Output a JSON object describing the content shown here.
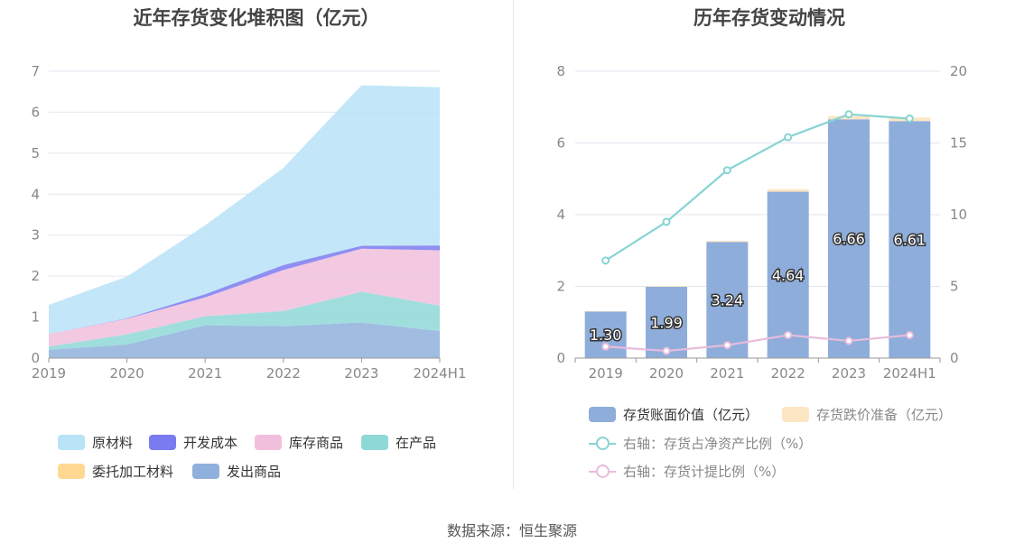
{
  "source": "数据来源：恒生聚源",
  "chart_data": [
    {
      "type": "area",
      "stacked": true,
      "title": "近年存货变化堆积图（亿元）",
      "categories": [
        "2019",
        "2020",
        "2021",
        "2022",
        "2023",
        "2024H1"
      ],
      "ylim": [
        0,
        7
      ],
      "yticks": [
        0,
        1,
        2,
        3,
        4,
        5,
        6,
        7
      ],
      "grid": true,
      "legend_position": "bottom",
      "series": [
        {
          "name": "发出商品",
          "color": "#8fb0dc",
          "values": [
            0.2,
            0.33,
            0.8,
            0.78,
            0.87,
            0.66
          ]
        },
        {
          "name": "委托加工材料",
          "color": "#ffd992",
          "values": [
            0.0,
            0.0,
            0.0,
            0.0,
            0.0,
            0.0
          ]
        },
        {
          "name": "在产品",
          "color": "#8fd8d8",
          "values": [
            0.08,
            0.25,
            0.22,
            0.37,
            0.75,
            0.62
          ]
        },
        {
          "name": "库存商品",
          "color": "#f0bfdc",
          "values": [
            0.31,
            0.38,
            0.46,
            1.0,
            1.05,
            1.35
          ]
        },
        {
          "name": "开发成本",
          "color": "#7b7bf0",
          "values": [
            0.0,
            0.01,
            0.08,
            0.12,
            0.07,
            0.12
          ]
        },
        {
          "name": "原材料",
          "color": "#b9e3f7",
          "values": [
            0.71,
            1.02,
            1.68,
            2.37,
            3.92,
            3.86
          ]
        }
      ],
      "legend_order": [
        "原材料",
        "开发成本",
        "库存商品",
        "在产品",
        "委托加工材料",
        "发出商品"
      ]
    },
    {
      "type": "bar",
      "stacked": true,
      "title": "历年存货变动情况",
      "categories": [
        "2019",
        "2020",
        "2021",
        "2022",
        "2023",
        "2024H1"
      ],
      "ylim": [
        0,
        8
      ],
      "yticks": [
        0,
        2,
        4,
        6,
        8
      ],
      "y2lim": [
        0,
        20
      ],
      "y2ticks": [
        0,
        5,
        10,
        15,
        20
      ],
      "grid": true,
      "legend_position": "bottom",
      "series": [
        {
          "name": "存货账面价值（亿元）",
          "color": "#8eadda",
          "axis": "left",
          "values": [
            1.3,
            1.99,
            3.24,
            4.64,
            6.66,
            6.61
          ],
          "labels": [
            "1.30",
            "1.99",
            "3.24",
            "4.64",
            "6.66",
            "6.61"
          ]
        },
        {
          "name": "存货跌价准备（亿元）",
          "color": "#fde6c4",
          "axis": "left",
          "values": [
            0.01,
            0.02,
            0.03,
            0.07,
            0.09,
            0.1
          ]
        }
      ],
      "line_series": [
        {
          "name": "右轴：存货占净资产比例（%）",
          "color": "#86d4d3",
          "axis": "right",
          "values": [
            6.8,
            9.5,
            13.1,
            15.4,
            17.0,
            16.7
          ]
        },
        {
          "name": "右轴：存货计提比例（%）",
          "color": "#e8bcdc",
          "axis": "right",
          "values": [
            0.8,
            0.5,
            0.9,
            1.6,
            1.2,
            1.6
          ]
        }
      ]
    }
  ]
}
